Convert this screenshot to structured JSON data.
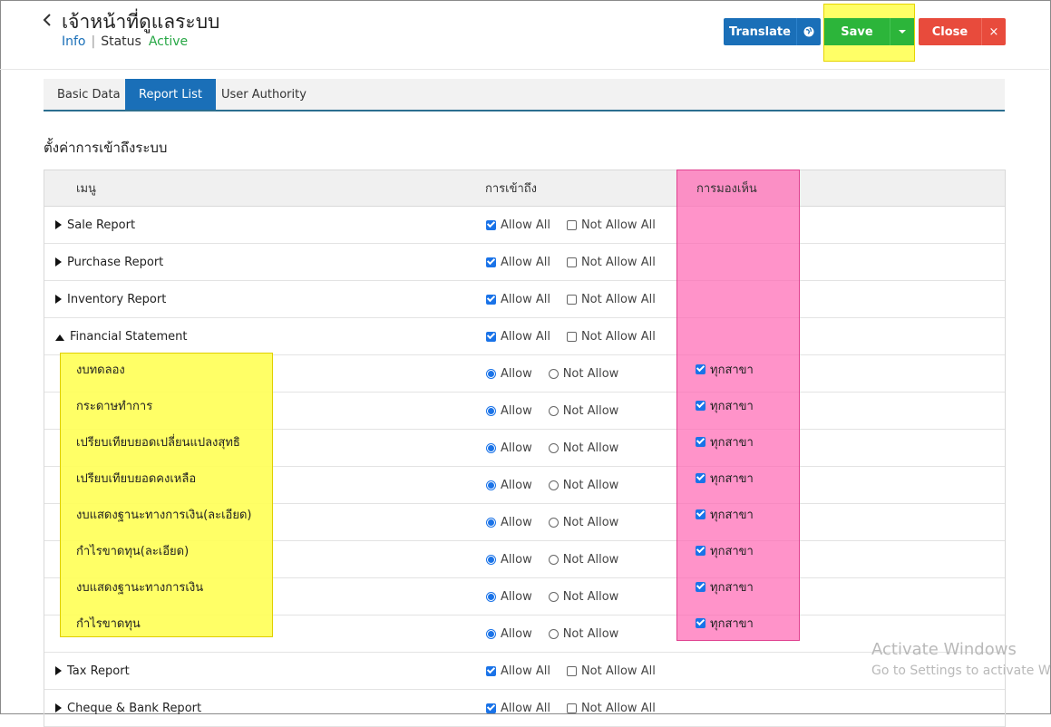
{
  "header": {
    "title": "เจ้าหน้าที่ดูแลระบบ",
    "info_link": "Info",
    "separator": "|",
    "status_label": "Status",
    "status_value": "Active"
  },
  "toolbar": {
    "translate_label": "Translate",
    "save_label": "Save",
    "close_label": "Close",
    "close_x": "×"
  },
  "tabs": [
    {
      "label": "Basic Data",
      "active": false
    },
    {
      "label": "Report List",
      "active": true
    },
    {
      "label": "User Authority",
      "active": false
    }
  ],
  "section_title": "ตั้งค่าการเข้าถึงระบบ",
  "table": {
    "columns": {
      "menu": "เมนู",
      "access": "การเข้าถึง",
      "visibility": "การมองเห็น"
    },
    "allow_all_label": "Allow All",
    "not_allow_all_label": "Not Allow All",
    "allow_label": "Allow",
    "not_allow_label": "Not Allow",
    "branch_label": "ทุกสาขา",
    "rows": [
      {
        "type": "group",
        "name": "Sale Report",
        "expanded": false,
        "allow_all": true,
        "not_allow_all": false
      },
      {
        "type": "group",
        "name": "Purchase Report",
        "expanded": false,
        "allow_all": true,
        "not_allow_all": false
      },
      {
        "type": "group",
        "name": "Inventory Report",
        "expanded": false,
        "allow_all": true,
        "not_allow_all": false
      },
      {
        "type": "group",
        "name": "Financial Statement",
        "expanded": true,
        "allow_all": true,
        "not_allow_all": false
      },
      {
        "type": "item",
        "name": "งบทดลอง",
        "allow": true,
        "all_branches": true
      },
      {
        "type": "item",
        "name": "กระดาษทำการ",
        "allow": true,
        "all_branches": true
      },
      {
        "type": "item",
        "name": "เปรียบเทียบยอดเปลี่ยนแปลงสุทธิ",
        "allow": true,
        "all_branches": true
      },
      {
        "type": "item",
        "name": "เปรียบเทียบยอดคงเหลือ",
        "allow": true,
        "all_branches": true
      },
      {
        "type": "item",
        "name": "งบแสดงฐานะทางการเงิน(ละเอียด)",
        "allow": true,
        "all_branches": true
      },
      {
        "type": "item",
        "name": "กำไรขาดทุน(ละเอียด)",
        "allow": true,
        "all_branches": true
      },
      {
        "type": "item",
        "name": "งบแสดงฐานะทางการเงิน",
        "allow": true,
        "all_branches": true
      },
      {
        "type": "item",
        "name": "กำไรขาดทุน",
        "allow": true,
        "all_branches": true
      },
      {
        "type": "group",
        "name": "Tax Report",
        "expanded": false,
        "allow_all": true,
        "not_allow_all": false
      },
      {
        "type": "group",
        "name": "Cheque & Bank Report",
        "expanded": false,
        "allow_all": true,
        "not_allow_all": false
      }
    ]
  },
  "watermark": {
    "line1": "Activate Windows",
    "line2": "Go to Settings to activate Windows."
  },
  "colors": {
    "primary": "#1a6fb8",
    "save": "#2cb53a",
    "close": "#e84b3c",
    "status_active": "#27a745",
    "highlight_pink": "#ff69b4",
    "highlight_yellow": "#ffff55"
  }
}
